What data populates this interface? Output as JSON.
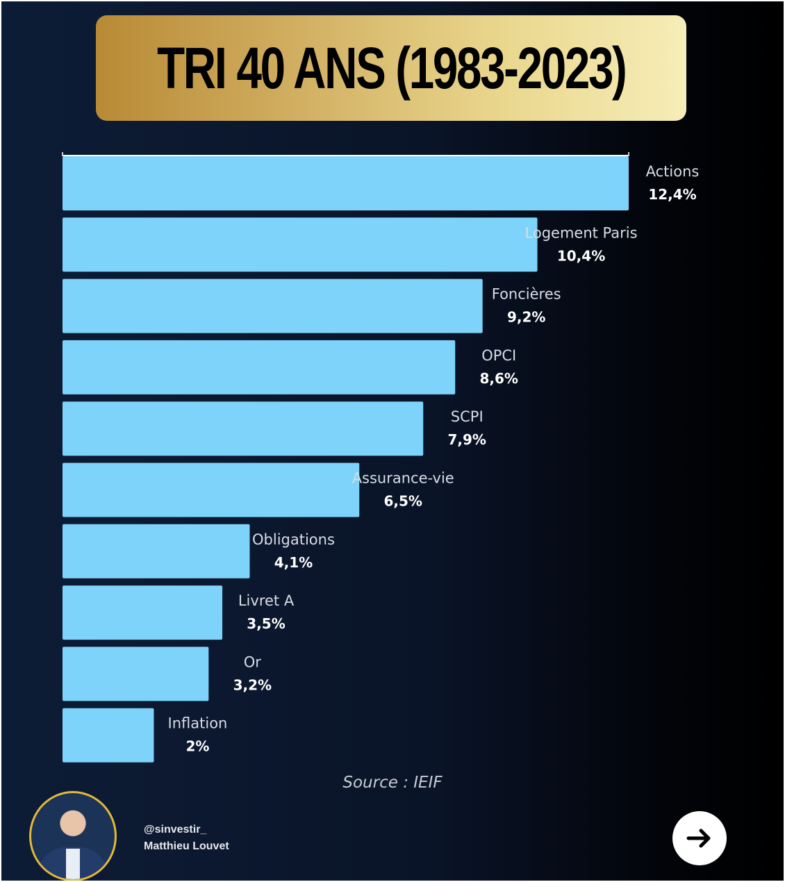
{
  "chart_data": {
    "type": "bar",
    "orientation": "horizontal",
    "title": "TRI 40 ANS (1983-2023)",
    "categories": [
      "Actions",
      "Logement Paris",
      "Foncières",
      "OPCI",
      "SCPI",
      "Assurance-vie",
      "Obligations",
      "Livret A",
      "Or",
      "Inflation"
    ],
    "values": [
      12.4,
      10.4,
      9.2,
      8.6,
      7.9,
      6.5,
      4.1,
      3.5,
      3.2,
      2.0
    ],
    "value_labels": [
      "12,4%",
      "10,4%",
      "9,2%",
      "8,6%",
      "7,9%",
      "6,5%",
      "4,1%",
      "3,5%",
      "3,2%",
      "2%"
    ],
    "xlabel": "",
    "ylabel": "",
    "xlim": [
      0,
      12.4
    ],
    "grid": false,
    "legend": "none",
    "bar_color": "#7dd3fa",
    "source": "Source : IEIF"
  },
  "footer": {
    "handle": "@sinvestir_",
    "name": "Matthieu Louvet",
    "next_icon": "arrow-right-icon"
  }
}
